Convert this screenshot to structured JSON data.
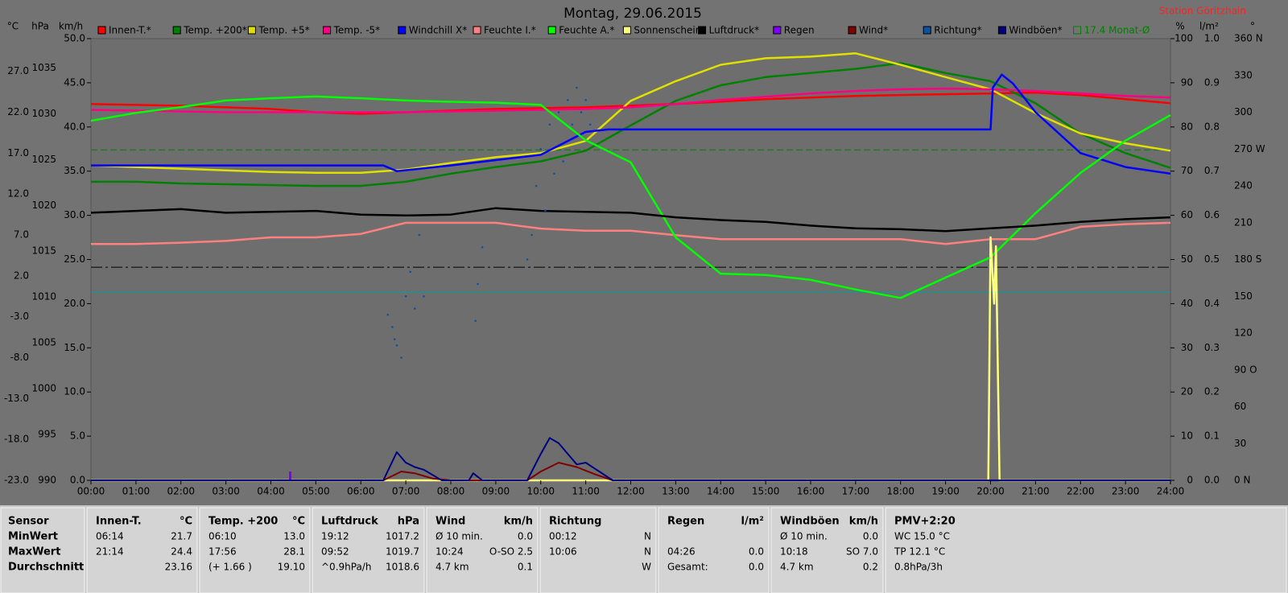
{
  "chart_data": {
    "type": "line",
    "title": "Montag, 29.06.2015",
    "station": "Station Göritzhain",
    "xlim": [
      0,
      24
    ],
    "xticks": [
      {
        "value": 0,
        "label": "00:00"
      },
      {
        "value": 1,
        "label": "01:00"
      },
      {
        "value": 2,
        "label": "02:00"
      },
      {
        "value": 3,
        "label": "03:00"
      },
      {
        "value": 4,
        "label": "04:00"
      },
      {
        "value": 5,
        "label": "05:00"
      },
      {
        "value": 6,
        "label": "06:00"
      },
      {
        "value": 7,
        "label": "07:00"
      },
      {
        "value": 8,
        "label": "08:00"
      },
      {
        "value": 9,
        "label": "09:00"
      },
      {
        "value": 10,
        "label": "10:00"
      },
      {
        "value": 11,
        "label": "11:00"
      },
      {
        "value": 12,
        "label": "12:00"
      },
      {
        "value": 13,
        "label": "13:00"
      },
      {
        "value": 14,
        "label": "14:00"
      },
      {
        "value": 15,
        "label": "15:00"
      },
      {
        "value": 16,
        "label": "16:00"
      },
      {
        "value": 17,
        "label": "17:00"
      },
      {
        "value": 18,
        "label": "18:00"
      },
      {
        "value": 19,
        "label": "19:00"
      },
      {
        "value": 20,
        "label": "20:00"
      },
      {
        "value": 21,
        "label": "21:00"
      },
      {
        "value": 22,
        "label": "22:00"
      },
      {
        "value": 23,
        "label": "23:00"
      },
      {
        "value": 24,
        "label": "24:00"
      }
    ],
    "x": [
      0,
      1,
      2,
      3,
      4,
      5,
      6,
      7,
      8,
      9,
      10,
      11,
      12,
      13,
      14,
      15,
      16,
      17,
      18,
      19,
      20,
      21,
      22,
      23,
      24
    ],
    "axes": {
      "celsius": {
        "label": "°C",
        "lim": [
          -23,
          31
        ],
        "ticks": [
          {
            "value": 27,
            "label": "27.0"
          },
          {
            "value": 22,
            "label": "22.0"
          },
          {
            "value": 17,
            "label": "17.0"
          },
          {
            "value": 12,
            "label": "12.0"
          },
          {
            "value": 7,
            "label": "7.0"
          },
          {
            "value": 2,
            "label": "2.0"
          },
          {
            "value": -3,
            "label": "-3.0"
          },
          {
            "value": -8,
            "label": "-8.0"
          },
          {
            "value": -13,
            "label": "-13.0"
          },
          {
            "value": -18,
            "label": "-18.0"
          },
          {
            "value": -23,
            "label": "-23.0"
          }
        ]
      },
      "hpa": {
        "label": "hPa",
        "lim": [
          990,
          1038.2
        ],
        "ticks": [
          1035,
          1030,
          1025,
          1020,
          1015,
          1010,
          1005,
          1000,
          995,
          990
        ]
      },
      "kmh": {
        "label": "km/h",
        "lim": [
          0,
          50
        ],
        "ticks": [
          {
            "value": 50,
            "label": "50.0"
          },
          {
            "value": 45,
            "label": "45.0"
          },
          {
            "value": 40,
            "label": "40.0"
          },
          {
            "value": 35,
            "label": "35.0"
          },
          {
            "value": 30,
            "label": "30.0"
          },
          {
            "value": 25,
            "label": "25.0"
          },
          {
            "value": 20,
            "label": "20.0"
          },
          {
            "value": 15,
            "label": "15.0"
          },
          {
            "value": 10,
            "label": "10.0"
          },
          {
            "value": 5,
            "label": "5.0"
          },
          {
            "value": 0,
            "label": "0.0"
          }
        ]
      },
      "percent": {
        "label": "%",
        "lim": [
          0,
          100
        ],
        "ticks": [
          100,
          90,
          80,
          70,
          60,
          50,
          40,
          30,
          20,
          10,
          0
        ]
      },
      "lm2": {
        "label": "l/m²",
        "lim": [
          0,
          1
        ],
        "ticks": [
          {
            "value": 1,
            "label": "1.0"
          },
          {
            "value": 0.9,
            "label": "0.9"
          },
          {
            "value": 0.8,
            "label": "0.8"
          },
          {
            "value": 0.7,
            "label": "0.7"
          },
          {
            "value": 0.6,
            "label": "0.6"
          },
          {
            "value": 0.5,
            "label": "0.5"
          },
          {
            "value": 0.4,
            "label": "0.4"
          },
          {
            "value": 0.3,
            "label": "0.3"
          },
          {
            "value": 0.2,
            "label": "0.2"
          },
          {
            "value": 0.1,
            "label": "0.1"
          },
          {
            "value": 0,
            "label": "0.0"
          }
        ]
      },
      "degree": {
        "label": "°",
        "lim": [
          0,
          360
        ],
        "ticks": [
          {
            "value": 360,
            "label": "360 N"
          },
          330,
          300,
          {
            "value": 270,
            "label": "270 W"
          },
          240,
          210,
          {
            "value": 180,
            "label": "180 S"
          },
          150,
          120,
          {
            "value": 90,
            "label": "90 O"
          },
          60,
          30,
          {
            "value": 0,
            "label": "0 N"
          }
        ]
      }
    },
    "series": [
      {
        "name": "Innen-T.*",
        "color": "#ff0000",
        "axis": "celsius",
        "type": "line",
        "values": [
          23.0,
          22.9,
          22.8,
          22.6,
          22.4,
          22.0,
          21.8,
          22.0,
          22.2,
          22.4,
          22.5,
          22.6,
          22.8,
          23.0,
          23.3,
          23.6,
          23.8,
          24.0,
          24.1,
          24.2,
          24.3,
          24.4,
          24.1,
          23.6,
          23.1
        ]
      },
      {
        "name": "Temp. +200*",
        "color": "#008000",
        "axis": "celsius",
        "type": "line",
        "values": [
          13.5,
          13.5,
          13.3,
          13.2,
          13.1,
          13.0,
          13.0,
          13.5,
          14.5,
          15.3,
          16.0,
          17.3,
          20.4,
          23.4,
          25.3,
          26.3,
          26.8,
          27.3,
          28.0,
          26.8,
          25.8,
          23.1,
          19.4,
          17.0,
          15.2
        ]
      },
      {
        "name": "Temp. +5*",
        "color": "#e0e000",
        "axis": "celsius",
        "type": "line",
        "values": [
          15.5,
          15.3,
          15.1,
          14.9,
          14.7,
          14.6,
          14.6,
          15.0,
          15.8,
          16.5,
          17.0,
          18.5,
          23.4,
          25.8,
          27.8,
          28.6,
          28.8,
          29.2,
          27.8,
          26.3,
          24.8,
          21.9,
          19.4,
          18.2,
          17.3
        ]
      },
      {
        "name": "Temp. -5*",
        "color": "#ff0080",
        "axis": "celsius",
        "type": "line",
        "values": [
          22.3,
          22.2,
          22.1,
          22.0,
          22.0,
          22.0,
          22.0,
          22.0,
          22.1,
          22.2,
          22.3,
          22.4,
          22.6,
          23.0,
          23.5,
          23.9,
          24.3,
          24.6,
          24.8,
          24.9,
          24.8,
          24.6,
          24.3,
          24.0,
          23.8
        ]
      },
      {
        "name": "Windchill X*",
        "color": "#0000ff",
        "axis": "celsius",
        "type": "line",
        "x": [
          0,
          6.5,
          6.8,
          8,
          10,
          11,
          11.5,
          20,
          20.05,
          20.25,
          20.5,
          21,
          22,
          23,
          24
        ],
        "values": [
          15.5,
          15.5,
          14.8,
          15.5,
          16.8,
          19.6,
          19.9,
          19.9,
          25,
          26.6,
          25.5,
          22.0,
          17.0,
          15.3,
          14.5
        ]
      },
      {
        "name": "Feuchte I.*",
        "color": "#ff8080",
        "axis": "percent",
        "type": "line",
        "values": [
          53.5,
          53.5,
          53.8,
          54.2,
          55.0,
          55.0,
          55.8,
          58.3,
          58.3,
          58.3,
          57.0,
          56.5,
          56.5,
          55.5,
          54.6,
          54.6,
          54.6,
          54.6,
          54.6,
          53.5,
          54.6,
          54.6,
          57.4,
          58.0,
          58.3
        ]
      },
      {
        "name": "Feuchte A.*",
        "color": "#00ff00",
        "axis": "percent",
        "type": "line",
        "values": [
          81.4,
          83.2,
          84.5,
          86.0,
          86.5,
          86.9,
          86.5,
          86.0,
          85.7,
          85.5,
          85.0,
          77.0,
          72.0,
          55.0,
          46.8,
          46.5,
          45.4,
          43.2,
          41.3,
          45.9,
          50.5,
          60.5,
          69.6,
          76.9,
          82.7
        ]
      },
      {
        "name": "Sonnenschein",
        "color": "#ffff80",
        "axis": "percent",
        "type": "line",
        "x": [
          0,
          19.95,
          20.0,
          20.08,
          20.12,
          20.2,
          24
        ],
        "values": [
          0,
          0,
          55,
          40,
          53,
          0,
          0
        ]
      },
      {
        "name": "Luftdruck*",
        "color": "#000000",
        "axis": "hpa",
        "type": "line",
        "values": [
          1019.2,
          1019.4,
          1019.6,
          1019.2,
          1019.3,
          1019.4,
          1019.0,
          1018.9,
          1019.0,
          1019.7,
          1019.4,
          1019.3,
          1019.2,
          1018.7,
          1018.4,
          1018.2,
          1017.8,
          1017.5,
          1017.4,
          1017.2,
          1017.5,
          1017.8,
          1018.2,
          1018.5,
          1018.7
        ]
      },
      {
        "name": "Regen",
        "color": "#8000ff",
        "axis": "lm2",
        "type": "bar",
        "x": [
          4.43
        ],
        "values": [
          0.02
        ]
      },
      {
        "name": "Wind*",
        "color": "#800000",
        "axis": "kmh",
        "type": "line",
        "x": [
          0,
          6.5,
          6.9,
          7.2,
          7.6,
          8,
          9.7,
          10.0,
          10.4,
          10.8,
          11.2,
          11.6,
          24
        ],
        "values": [
          0,
          0,
          1.0,
          0.8,
          0.2,
          0,
          0,
          1.0,
          2.0,
          1.5,
          0.7,
          0,
          0
        ]
      },
      {
        "name": "Richtung*",
        "color": "#1050a0",
        "axis": "degree",
        "type": "scatter",
        "x": [
          6.6,
          6.7,
          6.75,
          6.8,
          6.9,
          7.0,
          7.1,
          7.2,
          7.3,
          7.4,
          8.55,
          8.6,
          8.7,
          9.7,
          9.8,
          9.9,
          10.0,
          10.1,
          10.2,
          10.3,
          10.4,
          10.5,
          10.6,
          10.7,
          10.8,
          10.9,
          11.0,
          11.1
        ],
        "values": [
          135,
          125,
          115,
          110,
          100,
          150,
          170,
          140,
          200,
          150,
          130,
          160,
          190,
          180,
          200,
          240,
          270,
          220,
          290,
          250,
          300,
          260,
          310,
          290,
          320,
          300,
          310,
          290
        ]
      },
      {
        "name": "Windböen*",
        "color": "#000080",
        "axis": "kmh",
        "type": "line",
        "x": [
          0,
          6.5,
          6.8,
          7.0,
          7.2,
          7.4,
          7.8,
          8.4,
          8.5,
          8.7,
          9.7,
          9.9,
          10.0,
          10.2,
          10.4,
          10.6,
          10.8,
          11.0,
          11.3,
          11.6,
          24
        ],
        "values": [
          0,
          0,
          3.2,
          2.0,
          1.5,
          1.2,
          0,
          0,
          0.8,
          0,
          0,
          2.0,
          3.0,
          4.8,
          4.2,
          3.0,
          1.8,
          2.0,
          1.0,
          0,
          0
        ]
      }
    ],
    "reference_lines": [
      {
        "axis": "celsius",
        "value": 17.4,
        "color": "#008000",
        "dash": "dash",
        "label": "17.4 Monat-Ø"
      },
      {
        "axis": "hpa",
        "value": 1013.25,
        "color": "#000000",
        "dash": "dashdot"
      },
      {
        "axis": "celsius",
        "value": 0,
        "color": "#00a0a0",
        "dash": "solid"
      }
    ]
  },
  "table": {
    "header": [
      {
        "left": "Sensor"
      },
      {
        "left": "Innen-T.",
        "right": "°C"
      },
      {
        "left": "Temp. +200",
        "right": "°C"
      },
      {
        "left": "Luftdruck",
        "right": "hPa"
      },
      {
        "left": "Wind",
        "right": "km/h"
      },
      {
        "left": "Richtung"
      },
      {
        "left": "Regen",
        "right": "l/m²"
      },
      {
        "left": "Windböen",
        "right": "km/h"
      },
      {
        "left": "PMV+2:20"
      }
    ],
    "rows": [
      {
        "label": "MinWert",
        "cells": [
          {
            "left": "06:14",
            "right": "21.7"
          },
          {
            "left": "06:10",
            "right": "13.0"
          },
          {
            "left": "19:12",
            "right": "1017.2"
          },
          {
            "left": "Ø 10 min.",
            "right": "0.0"
          },
          {
            "left": "00:12",
            "right": "N"
          },
          {},
          {
            "left": "Ø 10 min.",
            "right": "0.0"
          },
          {
            "left": "WC 15.0 °C"
          }
        ]
      },
      {
        "label": "MaxWert",
        "cells": [
          {
            "left": "21:14",
            "right": "24.4"
          },
          {
            "left": "17:56",
            "right": "28.1"
          },
          {
            "left": "09:52",
            "right": "1019.7"
          },
          {
            "left": "10:24",
            "right": "O-SO 2.5"
          },
          {
            "left": "10:06",
            "right": "N"
          },
          {
            "left": "04:26",
            "right": "0.0"
          },
          {
            "left": "10:18",
            "right": "SO 7.0"
          },
          {
            "left": "TP 12.1 °C"
          }
        ]
      },
      {
        "label": "Durchschnitt",
        "cells": [
          {
            "right": "23.16"
          },
          {
            "left": "(+ 1.66 )",
            "right": "19.10"
          },
          {
            "left": "^0.9hPa/h",
            "right": "1018.6"
          },
          {
            "left": "4.7 km",
            "right": "0.1"
          },
          {
            "right": "W"
          },
          {
            "left": "Gesamt:",
            "right": "0.0"
          },
          {
            "left": "4.7 km",
            "right": "0.2"
          },
          {
            "left": "0.8hPa/3h"
          }
        ]
      }
    ]
  }
}
